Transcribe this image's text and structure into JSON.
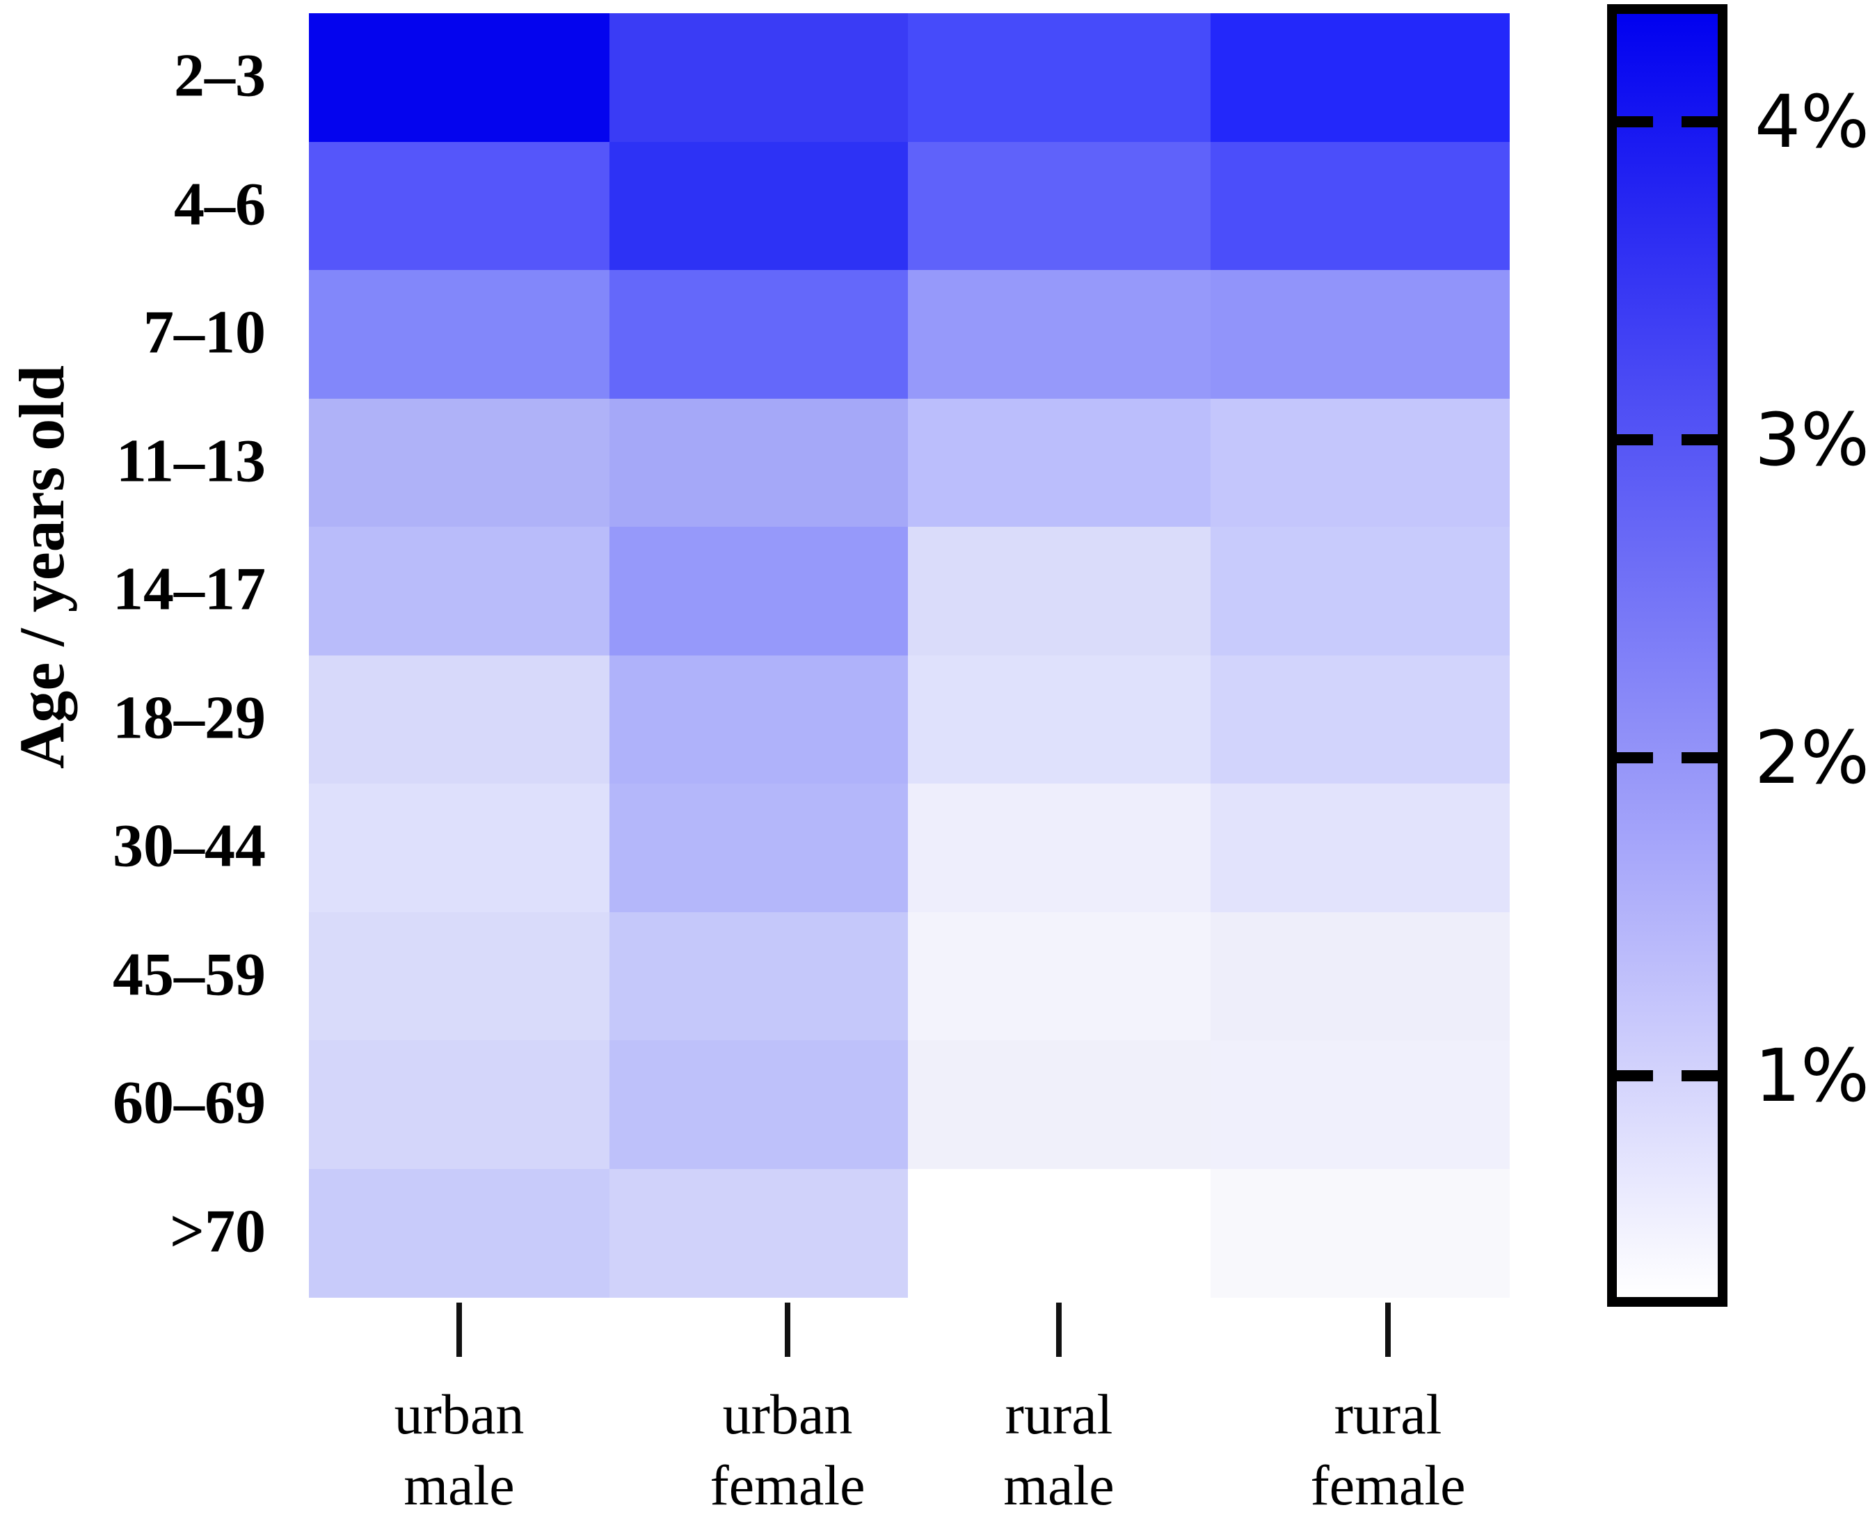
{
  "figure": {
    "y_axis_title": "Age / years old",
    "colorbar": {
      "tick_labels": [
        "4%",
        "3%",
        "2%",
        "1%"
      ],
      "gradient_top_color": "#0101F0",
      "gradient_bottom_color": "#FFFFFF",
      "approx_value_range_percent": [
        0.3,
        4.4
      ]
    }
  },
  "chart_data": {
    "type": "heatmap",
    "title": "",
    "xlabel": "",
    "ylabel": "Age / years old",
    "rows": [
      "2–3",
      "4–6",
      "7–10",
      "11–13",
      "14–17",
      "18–29",
      "30–44",
      "45–59",
      "60–69",
      ">70"
    ],
    "columns": [
      "urban male",
      "urban female",
      "rural male",
      "rural female"
    ],
    "column_labels_two_line": [
      [
        "urban",
        "male"
      ],
      [
        "urban",
        "female"
      ],
      [
        "rural",
        "male"
      ],
      [
        "rural",
        "female"
      ]
    ],
    "values_percent": [
      [
        4.35,
        3.43,
        3.2,
        3.76
      ],
      [
        3.0,
        3.6,
        2.84,
        3.16
      ],
      [
        2.28,
        2.76,
        1.97,
        2.05
      ],
      [
        1.57,
        1.73,
        1.38,
        1.23
      ],
      [
        1.41,
        1.97,
        0.88,
        1.17
      ],
      [
        0.93,
        1.57,
        0.8,
        1.01
      ],
      [
        0.82,
        1.49,
        0.56,
        0.75
      ],
      [
        0.9,
        1.22,
        0.49,
        0.56
      ],
      [
        0.98,
        1.33,
        0.53,
        0.53
      ],
      [
        1.17,
        1.04,
        0.29,
        0.41
      ]
    ],
    "cell_colors": [
      [
        "#0404EE",
        "#3A3CF5",
        "#464BFA",
        "#2328FA"
      ],
      [
        "#5556FA",
        "#2D32F5",
        "#5F62FA",
        "#4B4EFA"
      ],
      [
        "#8287FA",
        "#6468FA",
        "#9699FA",
        "#9194FA"
      ],
      [
        "#AFB2F8",
        "#A5A8F8",
        "#BBBEFC",
        "#C4C6FC"
      ],
      [
        "#B9BCFA",
        "#9699FA",
        "#DADCFA",
        "#C8CBFC"
      ],
      [
        "#D7D9FA",
        "#AFB2FA",
        "#DFE1FC",
        "#D2D4FC"
      ],
      [
        "#DEE0FC",
        "#B4B7FA",
        "#EEEEFC",
        "#E2E3FC"
      ],
      [
        "#D9DBFA",
        "#C5C8FA",
        "#F3F3FC",
        "#EEEEFA"
      ],
      [
        "#D4D6FA",
        "#BEC1FA",
        "#F0F0FA",
        "#F0F0FC"
      ],
      [
        "#C8CBFA",
        "#D0D2FA",
        "#FFFFFF",
        "#F8F8FC"
      ]
    ],
    "colorbar_ticks_percent": [
      4,
      3,
      2,
      1
    ],
    "legend_position": "right",
    "grid": false
  }
}
